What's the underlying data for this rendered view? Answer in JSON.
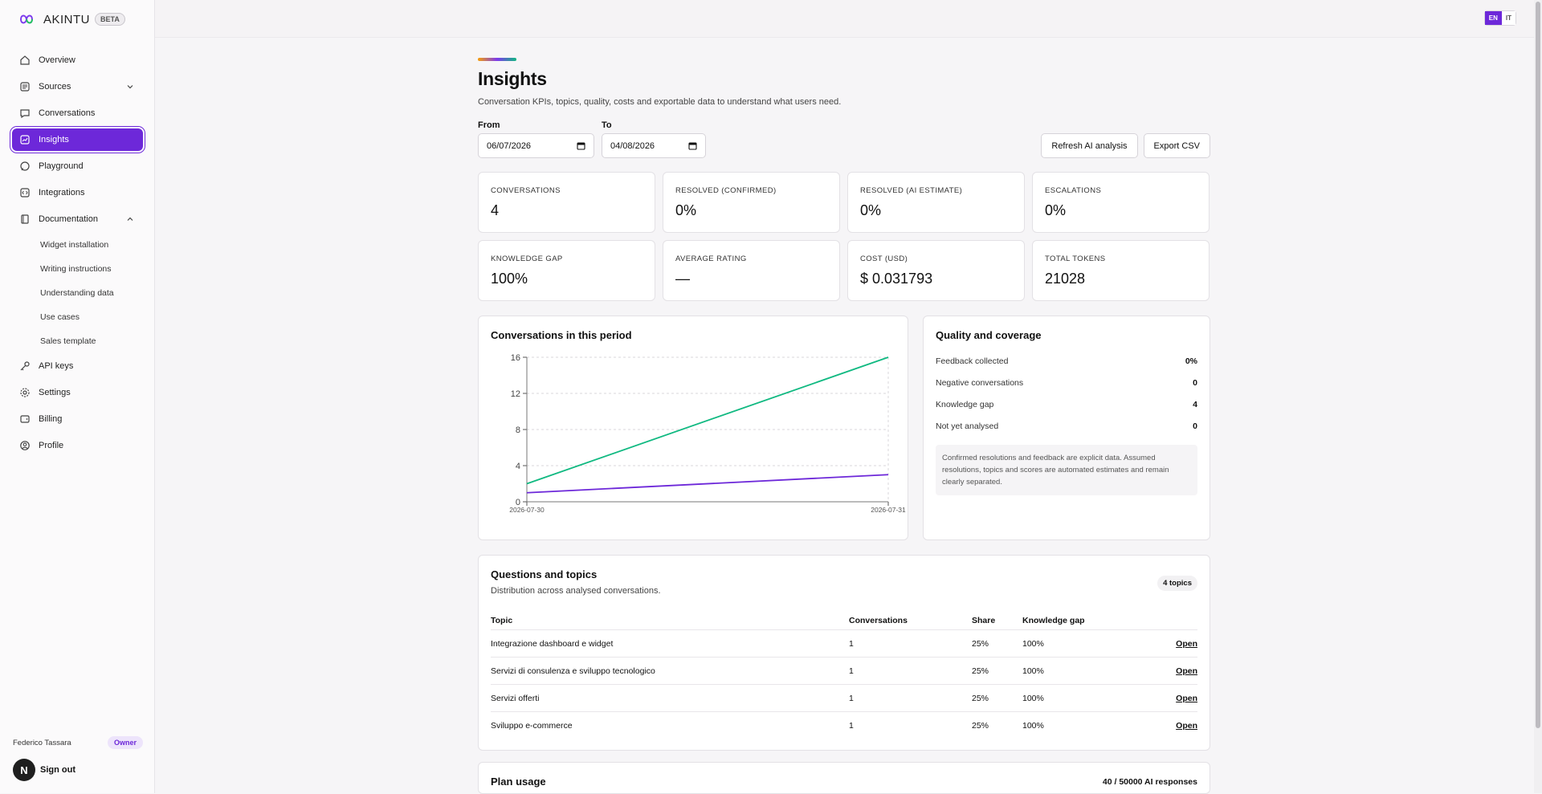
{
  "brand": {
    "name": "AKINTU",
    "badge": "BETA"
  },
  "nav": {
    "items": [
      {
        "label": "Overview",
        "icon": "home-icon"
      },
      {
        "label": "Sources",
        "icon": "database-icon"
      },
      {
        "label": "Conversations",
        "icon": "chat-icon"
      },
      {
        "label": "Insights",
        "icon": "chart-icon"
      },
      {
        "label": "Playground",
        "icon": "message-icon"
      },
      {
        "label": "Integrations",
        "icon": "code-icon"
      },
      {
        "label": "Documentation",
        "icon": "book-icon"
      }
    ],
    "doc_sub": [
      "Widget installation",
      "Writing instructions",
      "Understanding data",
      "Use cases",
      "Sales template"
    ],
    "items2": [
      {
        "label": "API keys",
        "icon": "key-icon"
      },
      {
        "label": "Settings",
        "icon": "gear-icon"
      },
      {
        "label": "Billing",
        "icon": "wallet-icon"
      },
      {
        "label": "Profile",
        "icon": "user-icon"
      }
    ]
  },
  "user": {
    "name": "Federico Tassara",
    "role": "Owner",
    "avatar": "N",
    "signout": "Sign out"
  },
  "lang": {
    "en": "EN",
    "it": "IT"
  },
  "page": {
    "title": "Insights",
    "subtitle": "Conversation KPIs, topics, quality, costs and exportable data to understand what users need."
  },
  "filters": {
    "from_label": "From",
    "from_value": "06/07/2026",
    "to_label": "To",
    "to_value": "04/08/2026",
    "refresh_label": "Refresh AI analysis",
    "export_label": "Export CSV"
  },
  "kpis": [
    {
      "label": "CONVERSATIONS",
      "value": "4"
    },
    {
      "label": "RESOLVED (CONFIRMED)",
      "value": "0%"
    },
    {
      "label": "RESOLVED (AI ESTIMATE)",
      "value": "0%"
    },
    {
      "label": "ESCALATIONS",
      "value": "0%"
    },
    {
      "label": "KNOWLEDGE GAP",
      "value": "100%"
    },
    {
      "label": "AVERAGE RATING",
      "value": "—"
    },
    {
      "label": "COST (USD)",
      "value": "$ 0.031793"
    },
    {
      "label": "TOTAL TOKENS",
      "value": "21028"
    }
  ],
  "chart": {
    "title": "Conversations in this period"
  },
  "chart_data": {
    "type": "line",
    "title": "Conversations in this period",
    "x": [
      "2026-07-30",
      "2026-07-31"
    ],
    "series": [
      {
        "values": [
          2,
          16
        ],
        "color": "#10b981"
      },
      {
        "values": [
          1,
          3
        ],
        "color": "#6d28d9"
      }
    ],
    "yticks": [
      0,
      4,
      8,
      12,
      16
    ],
    "ylim": [
      0,
      16
    ],
    "grid": true
  },
  "quality": {
    "title": "Quality and coverage",
    "rows": [
      {
        "label": "Feedback collected",
        "value": "0%"
      },
      {
        "label": "Negative conversations",
        "value": "0"
      },
      {
        "label": "Knowledge gap",
        "value": "4"
      },
      {
        "label": "Not yet analysed",
        "value": "0"
      }
    ],
    "note": "Confirmed resolutions and feedback are explicit data. Assumed resolutions, topics and scores are automated estimates and remain clearly separated."
  },
  "topics": {
    "title": "Questions and topics",
    "subtitle": "Distribution across analysed conversations.",
    "badge": "4 topics",
    "headers": [
      "Topic",
      "Conversations",
      "Share",
      "Knowledge gap"
    ],
    "rows": [
      {
        "topic": "Integrazione dashboard e widget",
        "conversations": "1",
        "share": "25%",
        "gap": "100%",
        "action": "Open"
      },
      {
        "topic": "Servizi di consulenza e sviluppo tecnologico",
        "conversations": "1",
        "share": "25%",
        "gap": "100%",
        "action": "Open"
      },
      {
        "topic": "Servizi offerti",
        "conversations": "1",
        "share": "25%",
        "gap": "100%",
        "action": "Open"
      },
      {
        "topic": "Sviluppo e-commerce",
        "conversations": "1",
        "share": "25%",
        "gap": "100%",
        "action": "Open"
      }
    ]
  },
  "plan": {
    "title": "Plan usage",
    "usage": "40 / 50000 AI responses"
  }
}
